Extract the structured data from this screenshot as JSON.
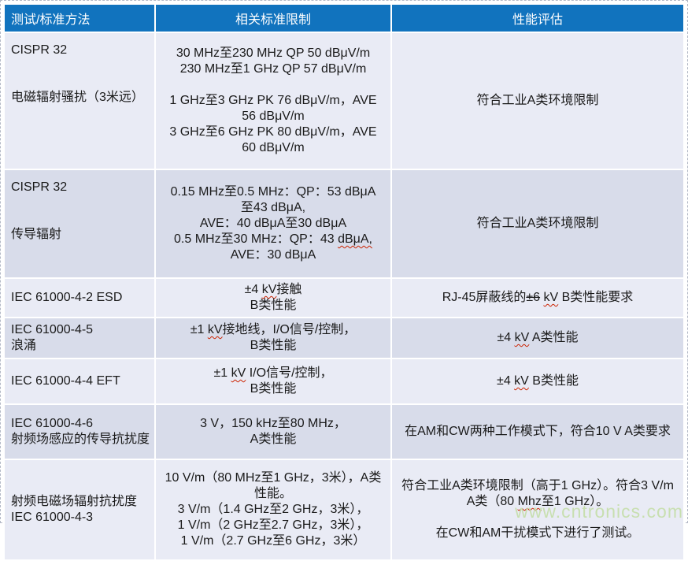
{
  "watermark": "www.cntronics.com",
  "colors": {
    "header_bg": "#1173BE",
    "header_text": "#ffffff",
    "row_light": "#E9EBF5",
    "row_dark": "#D8DCEA",
    "text": "#1a1a1a",
    "spellcheck_squiggle": "#CC2200",
    "watermark_green": "#C8DFB0",
    "frame_dash": "#B3B9C6"
  },
  "table": {
    "headers": [
      "测试/标准方法",
      "相关标准限制",
      "性能评估"
    ],
    "rows": [
      {
        "shade": "light",
        "method_lines": [
          "CISPR 32",
          "",
          "",
          "电磁辐射骚扰（3米远）"
        ],
        "limit_lines": [
          "30 MHz至230 MHz QP 50 dBμV/m",
          "230 MHz至1 GHz QP 57 dBμV/m",
          "",
          "1 GHz至3 GHz PK 76 dBμV/m，AVE",
          "56 dBμV/m",
          "3 GHz至6 GHz PK 80 dBμV/m，AVE",
          "60 dBμV/m"
        ],
        "eval_lines": [
          "符合工业A类环境限制"
        ]
      },
      {
        "shade": "dark",
        "method_lines": [
          "CISPR 32",
          "",
          "",
          "传导辐射"
        ],
        "limit_lines": [
          "0.15 MHz至0.5 MHz：QP：53 dBμA",
          "至43 dBμA,",
          "AVE：40 dBμA至30 dBμA",
          [
            {
              "t": "0.5 MHz至30 MHz：QP：43 "
            },
            {
              "t": "dBμA,",
              "s": "wavy"
            }
          ],
          "AVE：30 dBμA"
        ],
        "eval_lines": [
          "符合工业A类环境限制"
        ]
      },
      {
        "shade": "light",
        "method_lines": [
          "IEC 61000-4-2 ESD"
        ],
        "limit_lines": [
          [
            {
              "t": "±4 "
            },
            {
              "t": "kV",
              "s": "wavy"
            },
            {
              "t": "接触"
            }
          ],
          "B类性能"
        ],
        "eval_lines": [
          [
            {
              "t": "RJ-45屏蔽线的"
            },
            {
              "t": "±6",
              "s": "strike"
            },
            {
              "t": " "
            },
            {
              "t": "kV",
              "s": "wavy"
            },
            {
              "t": " B类性能要求"
            }
          ]
        ]
      },
      {
        "shade": "dark",
        "method_lines": [
          "IEC 61000-4-5",
          "浪涌"
        ],
        "limit_lines": [
          [
            {
              "t": "±1 "
            },
            {
              "t": "kV",
              "s": "wavy"
            },
            {
              "t": "接地线，I/O信号/控制，"
            }
          ],
          "B类性能"
        ],
        "eval_lines": [
          [
            {
              "t": "±4 "
            },
            {
              "t": "kV",
              "s": "wavy"
            },
            {
              "t": " A类性能"
            }
          ]
        ]
      },
      {
        "shade": "light",
        "method_lines": [
          "IEC 61000-4-4 EFT"
        ],
        "limit_lines": [
          [
            {
              "t": "±1 "
            },
            {
              "t": "kV",
              "s": "wavy"
            },
            {
              "t": " I/O信号/控制，"
            }
          ],
          "B类性能"
        ],
        "eval_lines": [
          [
            {
              "t": "±4 "
            },
            {
              "t": "kV",
              "s": "wavy"
            },
            {
              "t": " B类性能"
            }
          ]
        ]
      },
      {
        "shade": "dark",
        "method_lines": [
          "IEC 61000-4-6",
          "射频场感应的传导抗扰度"
        ],
        "limit_lines": [
          "3 V，150 kHz至80 MHz，",
          "A类性能"
        ],
        "eval_lines": [
          "在AM和CW两种工作模式下，符合10 V A类要求"
        ]
      },
      {
        "shade": "light",
        "method_lines": [
          "射频电磁场辐射抗扰度",
          "IEC 61000-4-3"
        ],
        "limit_lines": [
          "10 V/m（80 MHz至1 GHz，3米），A类性能。",
          "3 V/m（1.4 GHz至2 GHz，3米），",
          "1 V/m（2 GHz至2.7 GHz，3米），",
          "1 V/m（2.7 GHz至6 GHz，3米）"
        ],
        "eval_lines": [
          [
            {
              "t": "符合工业A类环境限制（高于1 GHz）。符合3 V/m A类（80 "
            },
            {
              "t": "Mhz",
              "s": "wavy"
            },
            {
              "t": "至1 GHz）。"
            }
          ],
          "",
          "在CW和AM干扰模式下进行了测试。"
        ]
      }
    ]
  }
}
